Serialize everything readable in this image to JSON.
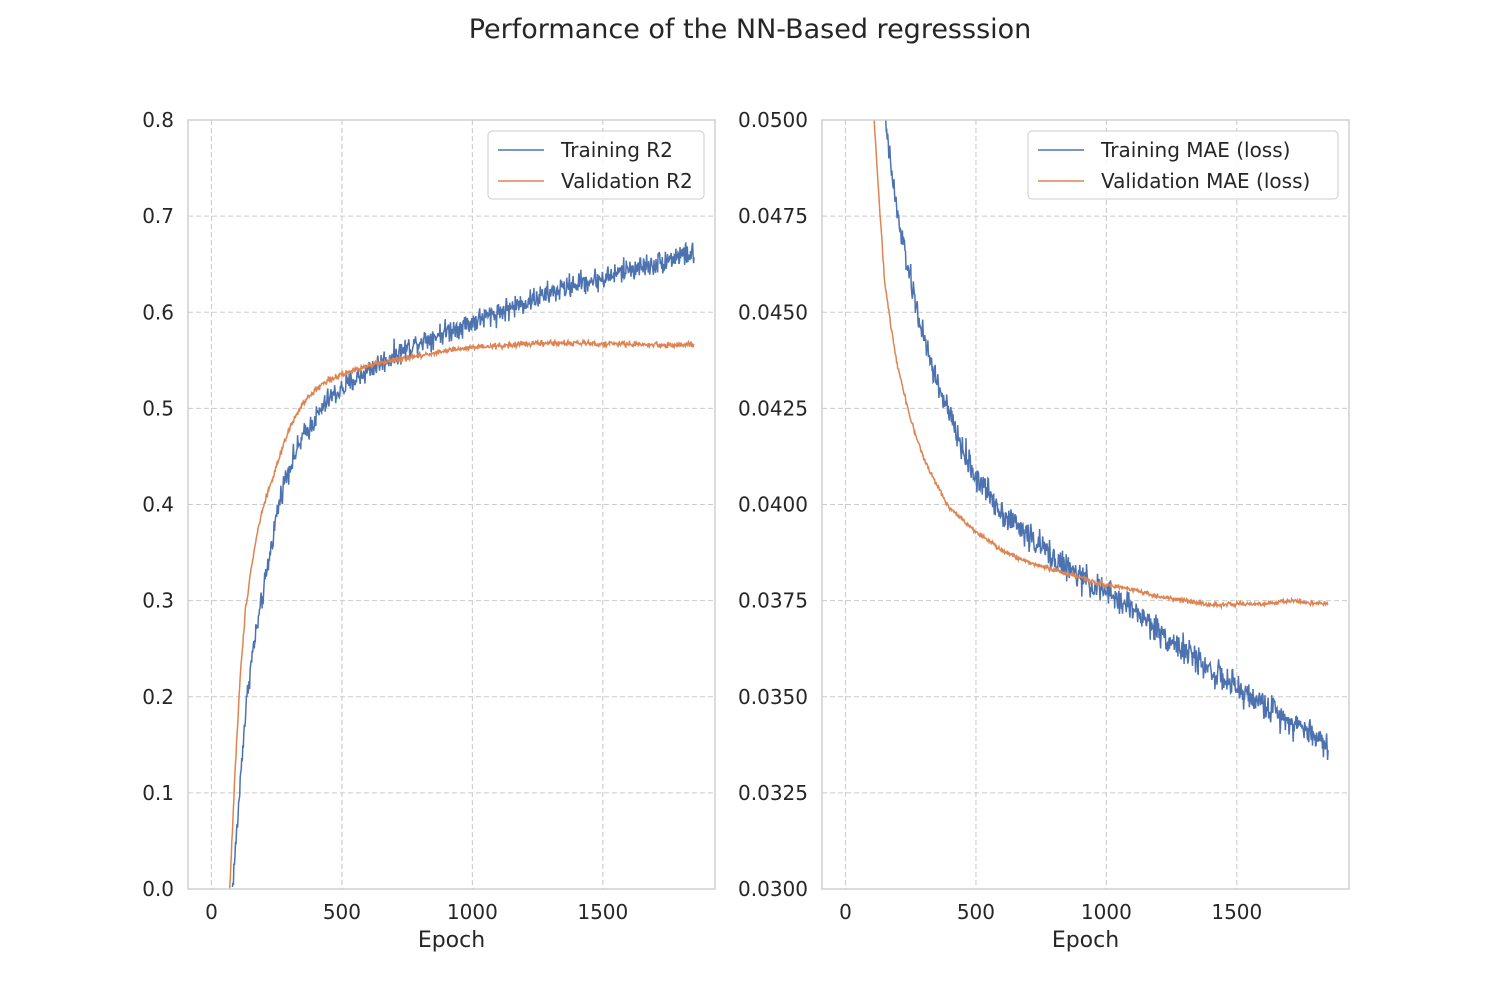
{
  "figure": {
    "title": "Performance of the NN-Based regresssion"
  },
  "colors": {
    "training": "#4c72b0",
    "validation": "#dd8452",
    "grid": "#cccccc",
    "spine": "#cccccc"
  },
  "chart_data": [
    {
      "type": "line",
      "title": "",
      "xlabel": "Epoch",
      "ylabel": "",
      "xlim": [
        -90,
        1930
      ],
      "ylim": [
        0.0,
        0.8
      ],
      "xticks": [
        0,
        500,
        1000,
        1500
      ],
      "xtick_labels": [
        "0",
        "500",
        "1000",
        "1500"
      ],
      "yticks": [
        0.0,
        0.1,
        0.2,
        0.3,
        0.4,
        0.5,
        0.6,
        0.7,
        0.8
      ],
      "ytick_labels": [
        "0.0",
        "0.1",
        "0.2",
        "0.3",
        "0.4",
        "0.5",
        "0.6",
        "0.7",
        "0.8"
      ],
      "grid": true,
      "grid_style": "dashed",
      "legend_position": "top-right",
      "series": [
        {
          "name": "Training R2",
          "color": "#4c72b0",
          "noise": 0.006,
          "x": [
            80,
            100,
            120,
            140,
            160,
            180,
            200,
            225,
            250,
            275,
            300,
            350,
            400,
            450,
            500,
            550,
            600,
            700,
            800,
            900,
            1000,
            1100,
            1200,
            1300,
            1400,
            1500,
            1600,
            1700,
            1800,
            1850
          ],
          "y": [
            0.0,
            0.07,
            0.15,
            0.21,
            0.25,
            0.28,
            0.31,
            0.35,
            0.39,
            0.42,
            0.44,
            0.47,
            0.49,
            0.51,
            0.52,
            0.53,
            0.54,
            0.555,
            0.57,
            0.58,
            0.59,
            0.6,
            0.61,
            0.62,
            0.63,
            0.635,
            0.645,
            0.65,
            0.66,
            0.66
          ]
        },
        {
          "name": "Validation R2",
          "color": "#dd8452",
          "noise": 0.0015,
          "x": [
            70,
            90,
            110,
            130,
            150,
            175,
            200,
            250,
            300,
            350,
            400,
            450,
            500,
            600,
            700,
            800,
            900,
            1000,
            1100,
            1200,
            1300,
            1400,
            1500,
            1600,
            1700,
            1850
          ],
          "y": [
            0.0,
            0.12,
            0.22,
            0.29,
            0.33,
            0.37,
            0.4,
            0.44,
            0.48,
            0.505,
            0.52,
            0.53,
            0.535,
            0.545,
            0.55,
            0.555,
            0.56,
            0.563,
            0.565,
            0.567,
            0.568,
            0.568,
            0.567,
            0.567,
            0.566,
            0.566
          ]
        }
      ]
    },
    {
      "type": "line",
      "title": "",
      "xlabel": "Epoch",
      "ylabel": "",
      "xlim": [
        -90,
        1930
      ],
      "ylim": [
        0.03,
        0.05
      ],
      "xticks": [
        0,
        500,
        1000,
        1500
      ],
      "xtick_labels": [
        "0",
        "500",
        "1000",
        "1500"
      ],
      "yticks": [
        0.03,
        0.0325,
        0.035,
        0.0375,
        0.04,
        0.0425,
        0.045,
        0.0475,
        0.05
      ],
      "ytick_labels": [
        "0.0300",
        "0.0325",
        "0.0350",
        "0.0375",
        "0.0400",
        "0.0425",
        "0.0450",
        "0.0475",
        "0.0500"
      ],
      "grid": true,
      "grid_style": "dashed",
      "legend_position": "top-right",
      "series": [
        {
          "name": "Training MAE (loss)",
          "color": "#4c72b0",
          "noise": 0.00018,
          "x": [
            140,
            160,
            180,
            200,
            250,
            300,
            350,
            400,
            450,
            500,
            550,
            600,
            700,
            800,
            900,
            1000,
            1100,
            1200,
            1300,
            1400,
            1500,
            1600,
            1700,
            1800,
            1850
          ],
          "y": [
            0.051,
            0.0495,
            0.0485,
            0.0475,
            0.0458,
            0.0443,
            0.0432,
            0.0423,
            0.0414,
            0.0407,
            0.0403,
            0.0398,
            0.0392,
            0.0386,
            0.0381,
            0.0377,
            0.0373,
            0.0367,
            0.0362,
            0.0357,
            0.0352,
            0.0348,
            0.0344,
            0.034,
            0.0337
          ]
        },
        {
          "name": "Validation MAE (loss)",
          "color": "#dd8452",
          "noise": 3e-05,
          "x": [
            110,
            130,
            150,
            175,
            200,
            250,
            300,
            350,
            400,
            450,
            500,
            600,
            700,
            800,
            900,
            1000,
            1100,
            1200,
            1300,
            1400,
            1500,
            1600,
            1700,
            1850
          ],
          "y": [
            0.05,
            0.0478,
            0.0458,
            0.0446,
            0.0436,
            0.0422,
            0.0412,
            0.0405,
            0.0399,
            0.0396,
            0.0393,
            0.0388,
            0.0385,
            0.0383,
            0.0381,
            0.0379,
            0.0378,
            0.0376,
            0.0375,
            0.0374,
            0.0374,
            0.0374,
            0.0375,
            0.0374
          ]
        }
      ]
    }
  ]
}
